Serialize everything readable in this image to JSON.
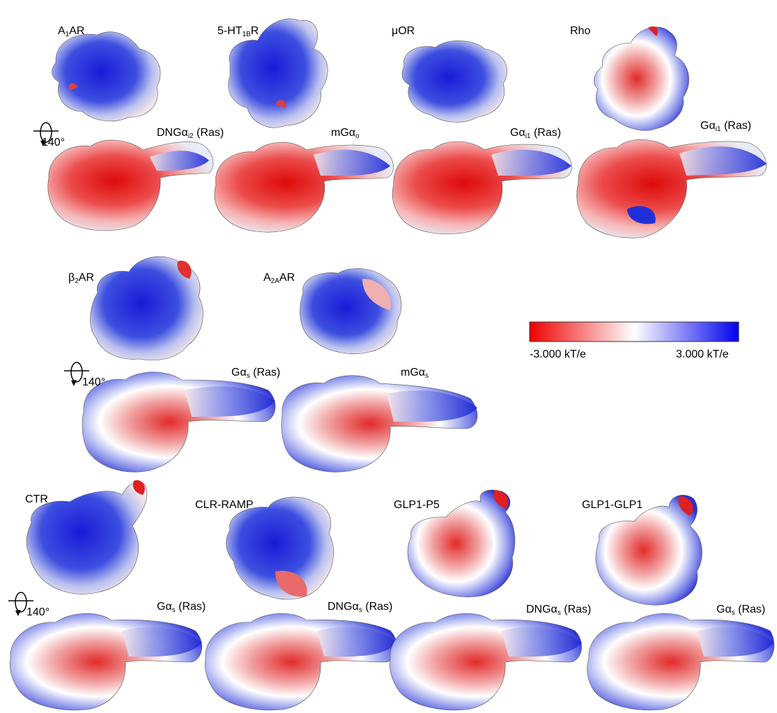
{
  "colors": {
    "negative": "#ee0000",
    "neutral": "#ffffff",
    "positive": "#1010e0"
  },
  "rotation_label": "140°",
  "scale": {
    "min_label": "-3.000 kT/e",
    "max_label": "3.000 kT/e"
  },
  "row1": {
    "receptors": [
      {
        "name": "A",
        "sub": "1",
        "suffix": "AR"
      },
      {
        "name": "5-HT",
        "sub": "1B",
        "suffix": "R"
      },
      {
        "name": "μOR",
        "sub": "",
        "suffix": ""
      },
      {
        "name": "Rho",
        "sub": "",
        "suffix": ""
      }
    ],
    "g_proteins": [
      {
        "name": "DNGα",
        "sub": "i2",
        "suffix": " (Ras)"
      },
      {
        "name": "mGα",
        "sub": "o",
        "suffix": ""
      },
      {
        "name": "Gα",
        "sub": "i1",
        "suffix": " (Ras)"
      },
      {
        "name": "Gα",
        "sub": "i1",
        "suffix": " (Ras)"
      }
    ]
  },
  "row2": {
    "receptors": [
      {
        "name": "β",
        "sub": "2",
        "suffix": "AR"
      },
      {
        "name": "A",
        "sub": "2A",
        "suffix": "AR"
      }
    ],
    "g_proteins": [
      {
        "name": "Gα",
        "sub": "s",
        "suffix": " (Ras)"
      },
      {
        "name": "mGα",
        "sub": "s",
        "suffix": ""
      }
    ]
  },
  "row3": {
    "receptors": [
      {
        "name": "CTR",
        "sub": "",
        "suffix": ""
      },
      {
        "name": "CLR-RAMP",
        "sub": "",
        "suffix": ""
      },
      {
        "name": "GLP1-P5",
        "sub": "",
        "suffix": ""
      },
      {
        "name": "GLP1-GLP1",
        "sub": "",
        "suffix": ""
      }
    ],
    "g_proteins": [
      {
        "name": "Gα",
        "sub": "s",
        "suffix": " (Ras)"
      },
      {
        "name": "DNGα",
        "sub": "s",
        "suffix": " (Ras)"
      },
      {
        "name": "DNGα",
        "sub": "s",
        "suffix": " (Ras)"
      },
      {
        "name": "Gα",
        "sub": "s",
        "suffix": " (Ras)"
      }
    ]
  }
}
